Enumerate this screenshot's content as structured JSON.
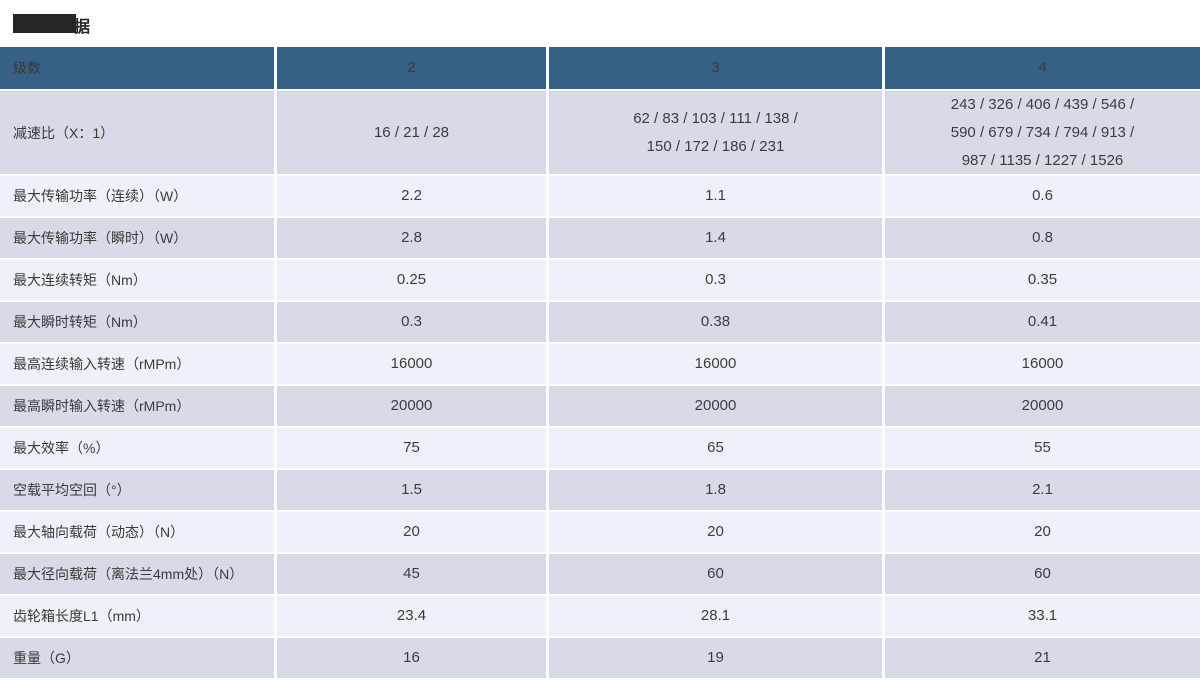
{
  "title": {
    "visible_text": "据",
    "redacted": true
  },
  "colors": {
    "header_bg": "#366184",
    "header_text": "#f2f4f6",
    "row_dark": "#d7dbe6",
    "row_light": "#eef1f8",
    "redaction": "#262626"
  },
  "table": {
    "header": {
      "col_label": "级数",
      "columns": [
        "2",
        "3",
        "4"
      ]
    },
    "rows": [
      {
        "label": "减速比（X：1）",
        "values": [
          "16 / 21 / 28",
          "62 / 83 / 103 / 111 / 138 /\n150 / 172 / 186 / 231",
          "243 / 326 / 406 / 439 / 546 /\n590 / 679 / 734 / 794 / 913 /\n987 / 1135 / 1227 / 1526"
        ]
      },
      {
        "label": "最大传输功率（连续）（W）",
        "values": [
          "2.2",
          "1.1",
          "0.6"
        ]
      },
      {
        "label": "最大传输功率（瞬时）（W）",
        "values": [
          "2.8",
          "1.4",
          "0.8"
        ]
      },
      {
        "label": "最大连续转矩（Nm）",
        "values": [
          "0.25",
          "0.3",
          "0.35"
        ]
      },
      {
        "label": "最大瞬时转矩（Nm）",
        "values": [
          "0.3",
          "0.38",
          "0.41"
        ]
      },
      {
        "label": "最高连续输入转速（rMPm）",
        "values": [
          "16000",
          "16000",
          "16000"
        ]
      },
      {
        "label": "最高瞬时输入转速（rMPm）",
        "values": [
          "20000",
          "20000",
          "20000"
        ]
      },
      {
        "label": "最大效率（%）",
        "values": [
          "75",
          "65",
          "55"
        ]
      },
      {
        "label": "空载平均空回（°）",
        "values": [
          "1.5",
          "1.8",
          "2.1"
        ]
      },
      {
        "label": "最大轴向载荷（动态）（N）",
        "values": [
          "20",
          "20",
          "20"
        ]
      },
      {
        "label": "最大径向载荷（离法兰4mm处）（N）",
        "values": [
          "45",
          "60",
          "60"
        ]
      },
      {
        "label": "齿轮箱长度L1（mm）",
        "values": [
          "23.4",
          "28.1",
          "33.1"
        ]
      },
      {
        "label": "重量（G）",
        "values": [
          "16",
          "19",
          "21"
        ]
      }
    ]
  }
}
